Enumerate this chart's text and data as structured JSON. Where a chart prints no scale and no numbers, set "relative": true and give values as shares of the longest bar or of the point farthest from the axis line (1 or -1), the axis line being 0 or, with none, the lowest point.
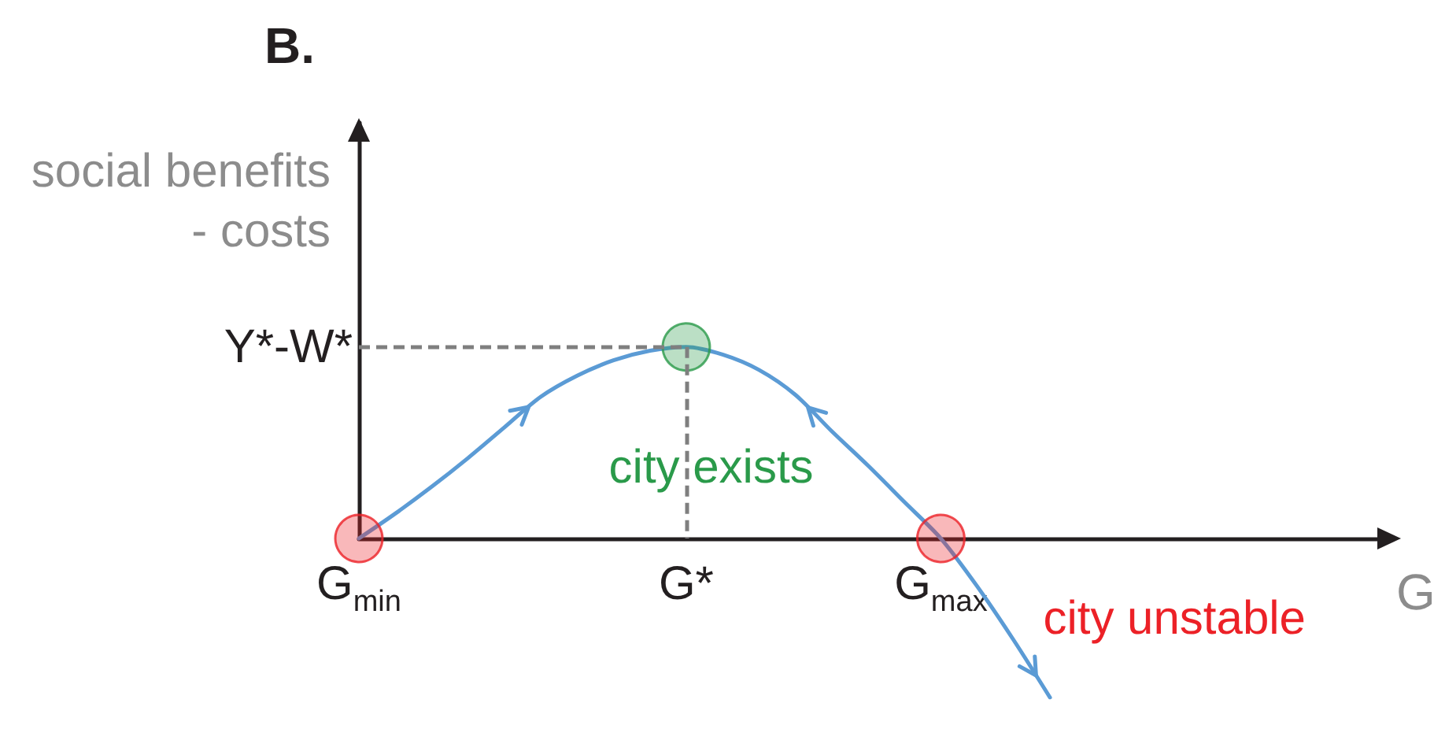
{
  "chart_data": {
    "type": "line",
    "title": "B.",
    "xlabel": "G",
    "ylabel": "social benefits\n- costs",
    "relative": true,
    "categories": [
      "G$_{min}$",
      null,
      null,
      null,
      null,
      null,
      null,
      null,
      null,
      "G*",
      null,
      null,
      null,
      null,
      null,
      null,
      "G$_{max}$",
      null,
      null,
      null,
      null,
      null,
      null,
      null,
      null,
      null,
      null,
      null,
      null
    ],
    "series": [
      {
        "color": "#5b9bd5",
        "marker": "none",
        "values": [
          0,
          0.13,
          0.27,
          0.42,
          0.58,
          0.74,
          0.85,
          0.93,
          0.98,
          1,
          0.96,
          0.88,
          0.75,
          0.56,
          0.38,
          0.19,
          0,
          -0.25,
          -0.53,
          -0.83,
          null,
          null,
          null,
          null,
          null,
          null,
          null,
          null,
          null
        ]
      },
      {
        "type": "scatter",
        "name": "city exists",
        "color": "#2a9a4a",
        "marker": "circle",
        "x": [
          "G*"
        ],
        "values": [
          1
        ]
      },
      {
        "type": "scatter",
        "name": "city unstable",
        "color": "#ec2127",
        "marker": "circle",
        "x": [
          "G$_{min}$",
          "G$_{max}$"
        ],
        "values": [
          0,
          0
        ]
      }
    ],
    "annotations": [
      {
        "text": "Y*-W*",
        "x": "G*",
        "y": 1
      }
    ]
  }
}
